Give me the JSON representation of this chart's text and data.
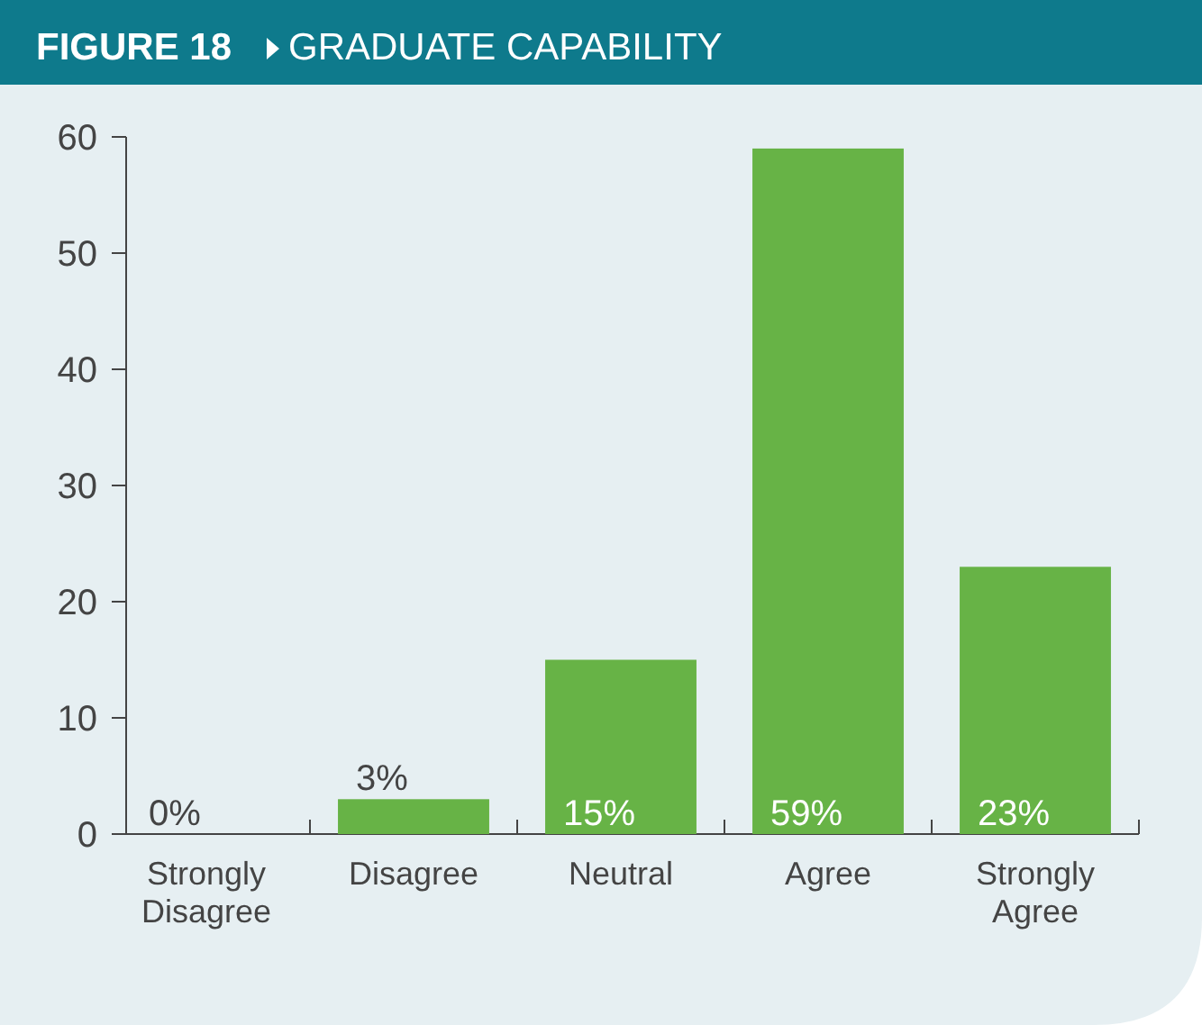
{
  "chart_data": {
    "type": "bar",
    "title": "FIGURE 18",
    "subtitle": "GRADUATE CAPABILITY",
    "categories": [
      "Strongly Disagree",
      "Disagree",
      "Neutral",
      "Agree",
      "Strongly Agree"
    ],
    "values": [
      0,
      3,
      15,
      59,
      23
    ],
    "value_labels": [
      "0%",
      "3%",
      "15%",
      "59%",
      "23%"
    ],
    "color": "#67b346",
    "ylim": [
      0,
      60
    ],
    "yticks": [
      0,
      10,
      20,
      30,
      40,
      50,
      60
    ]
  }
}
